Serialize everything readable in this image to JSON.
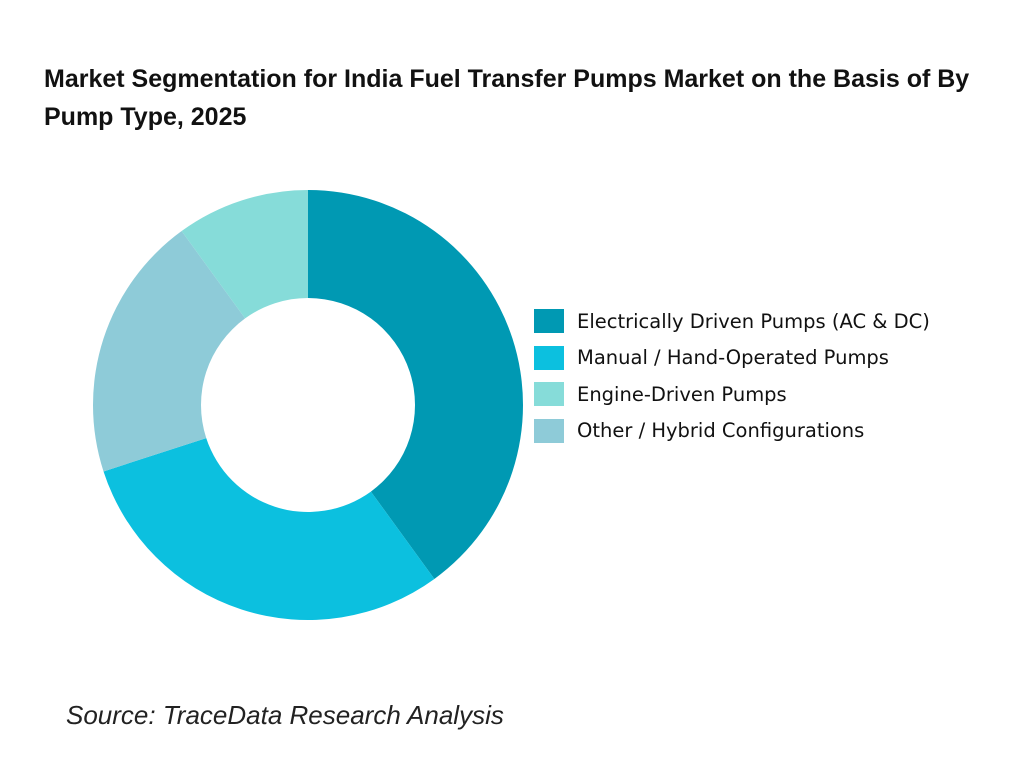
{
  "chart_data": {
    "type": "pie",
    "subtype": "donut",
    "title": "Market Segmentation for India Fuel Transfer Pumps Market on the Basis of  By Pump Type, 2025",
    "categories": [
      "Electrically Driven Pumps (AC & DC)",
      "Manual / Hand-Operated Pumps",
      "Engine-Driven Pumps",
      "Other / Hybrid Configurations"
    ],
    "values": [
      40,
      30,
      10,
      20
    ],
    "unit": "%",
    "colors": [
      "#0099B3",
      "#0CC0DF",
      "#86DCD9",
      "#8ECBD8"
    ],
    "legend_position": "right"
  },
  "source": "Source: TraceData Research Analysis"
}
